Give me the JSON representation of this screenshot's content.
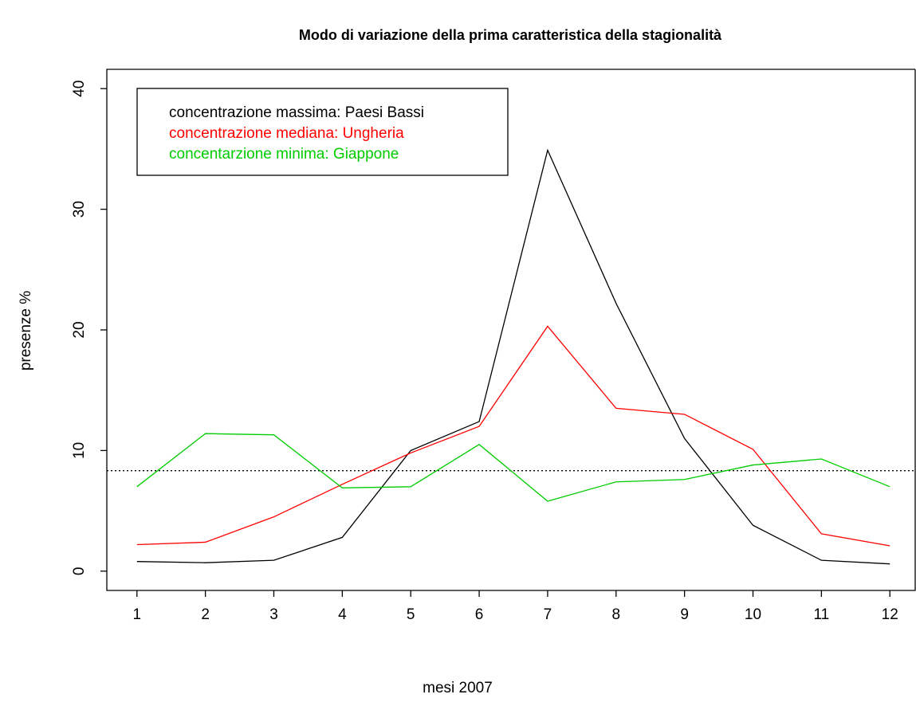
{
  "chart_data": {
    "type": "line",
    "title": "Modo di variazione della prima caratteristica della stagionalità",
    "xlabel": "mesi 2007",
    "ylabel": "presenze %",
    "x": [
      1,
      2,
      3,
      4,
      5,
      6,
      7,
      8,
      9,
      10,
      11,
      12
    ],
    "series": [
      {
        "name": "concentrazione massima: Paesi Bassi",
        "color": "#000000",
        "values": [
          0.8,
          0.7,
          0.9,
          2.8,
          10.0,
          12.4,
          34.9,
          22.2,
          11.0,
          3.8,
          0.9,
          0.6
        ]
      },
      {
        "name": "concentrazione mediana: Ungheria",
        "color": "#ff0000",
        "values": [
          2.2,
          2.4,
          4.5,
          7.2,
          9.8,
          12.0,
          20.3,
          13.5,
          13.0,
          10.1,
          3.1,
          2.1
        ]
      },
      {
        "name": "concentarzione minima: Giappone",
        "color": "#00cc00",
        "values": [
          7.0,
          11.4,
          11.3,
          6.9,
          7.0,
          10.5,
          5.8,
          7.4,
          7.6,
          8.8,
          9.3,
          7.0
        ]
      }
    ],
    "reference_line": 8.33,
    "xlim": [
      0.56,
      12.44
    ],
    "ylim": [
      -1.6,
      41.6
    ],
    "xticks": [
      1,
      2,
      3,
      4,
      5,
      6,
      7,
      8,
      9,
      10,
      11,
      12
    ],
    "yticks": [
      0,
      10,
      20,
      30,
      40
    ],
    "legend": "top-left"
  }
}
